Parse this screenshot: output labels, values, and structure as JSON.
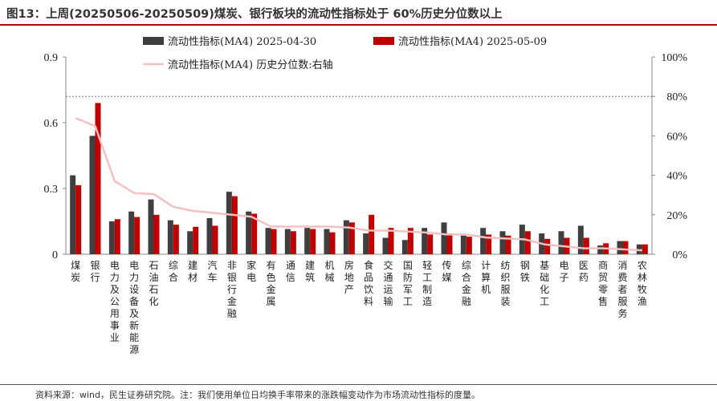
{
  "title": "图13：上周(20250506-20250509)煤炭、银行板块的流动性指标处于 60%历史分位数以上",
  "source": "资料来源：wind，民生证券研究院。注：我们使用单位日均换手率带来的涨跌幅变动作为市场流动性指标的度量。",
  "colors": {
    "series1": "#3f3f3f",
    "series2": "#c00000",
    "line": "#f4c0c0",
    "title_rule": "#b3000c"
  },
  "chart_data": {
    "type": "bar",
    "categories": [
      "煤炭",
      "银行",
      "电力及公用事业",
      "电力设备及新能源",
      "石油石化",
      "综合",
      "建材",
      "汽车",
      "非银行金融",
      "家电",
      "有色金属",
      "通信",
      "建筑",
      "机械",
      "房地产",
      "食品饮料",
      "交通运输",
      "国防军工",
      "轻工制造",
      "传媒",
      "综合金融",
      "计算机",
      "纺织服装",
      "钢铁",
      "基础化工",
      "电子",
      "医药",
      "商贸零售",
      "消费者服务",
      "农林牧渔"
    ],
    "series": [
      {
        "name": "流动性指标(MA4) 2025-04-30",
        "values": [
          0.36,
          0.54,
          0.15,
          0.195,
          0.25,
          0.155,
          0.105,
          0.165,
          0.285,
          0.195,
          0.12,
          0.115,
          0.12,
          0.115,
          0.155,
          0.095,
          0.075,
          0.065,
          0.12,
          0.145,
          0.085,
          0.12,
          0.105,
          0.135,
          0.095,
          0.105,
          0.13,
          0.04,
          0.06,
          0.045
        ]
      },
      {
        "name": "流动性指标(MA4) 2025-05-09",
        "values": [
          0.315,
          0.69,
          0.16,
          0.17,
          0.18,
          0.135,
          0.125,
          0.13,
          0.265,
          0.185,
          0.115,
          0.105,
          0.115,
          0.1,
          0.145,
          0.18,
          0.12,
          0.12,
          0.09,
          0.095,
          0.08,
          0.09,
          0.085,
          0.105,
          0.07,
          0.075,
          0.075,
          0.05,
          0.06,
          0.045
        ]
      },
      {
        "name": "流动性指标(MA4) 历史分位数:右轴",
        "type": "line",
        "axis": "right",
        "values": [
          69,
          65,
          37,
          31,
          30.5,
          24,
          22,
          21,
          20,
          19,
          14,
          14,
          14,
          14,
          13.5,
          12,
          12,
          11.5,
          11,
          10,
          10,
          8.5,
          8,
          7.5,
          5,
          4,
          3,
          3,
          2.5,
          2
        ]
      }
    ],
    "y_left": {
      "ticks": [
        "0",
        "0.3",
        "0.6",
        "0.9"
      ],
      "ylim": [
        0,
        0.9
      ]
    },
    "y_right": {
      "ticks": [
        "0%",
        "20%",
        "40%",
        "60%",
        "80%",
        "100%"
      ],
      "ylim": [
        0,
        100
      ]
    },
    "reference_line": {
      "axis": "right",
      "value": 80,
      "style": "dotted"
    },
    "legend": "top",
    "grid": false
  }
}
